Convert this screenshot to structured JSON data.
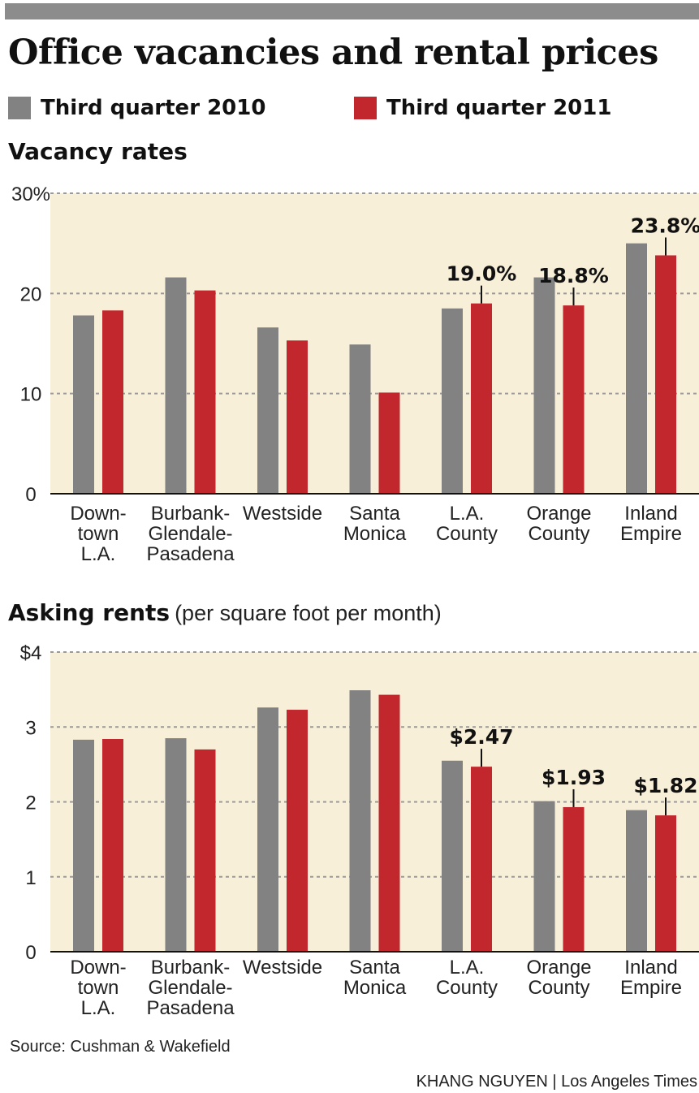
{
  "title": "Office vacancies and rental prices",
  "legend": {
    "series_2010": "Third quarter 2010",
    "series_2011": "Third quarter 2011",
    "color_2010": "#828282",
    "color_2011": "#c1272d"
  },
  "panel_background": "#f8efd9",
  "chart_data": [
    {
      "type": "bar",
      "title": "Vacancy rates",
      "note": "",
      "categories": [
        [
          "Down-",
          "town",
          "L.A."
        ],
        [
          "Burbank-",
          "Glendale-",
          "Pasadena"
        ],
        [
          "Westside"
        ],
        [
          "Santa",
          "Monica"
        ],
        [
          "L.A.",
          "County"
        ],
        [
          "Orange",
          "County"
        ],
        [
          "Inland",
          "Empire"
        ]
      ],
      "series": [
        {
          "name": "Third quarter 2010",
          "values": [
            17.8,
            21.6,
            16.6,
            14.9,
            18.5,
            21.6,
            25.0
          ]
        },
        {
          "name": "Third quarter 2011",
          "values": [
            18.3,
            20.3,
            15.3,
            10.1,
            19.0,
            18.8,
            23.8
          ]
        }
      ],
      "ylim": [
        0,
        30
      ],
      "yticks": [
        0,
        10,
        20,
        30
      ],
      "ytick_labels": [
        "0",
        "10",
        "20",
        "30%"
      ],
      "annotations": [
        {
          "category_index": 4,
          "text": "19.0%"
        },
        {
          "category_index": 5,
          "text": "18.8%"
        },
        {
          "category_index": 6,
          "text": "23.8%"
        }
      ]
    },
    {
      "type": "bar",
      "title": "Asking rents",
      "note": "(per square foot per month)",
      "categories": [
        [
          "Down-",
          "town",
          "L.A."
        ],
        [
          "Burbank-",
          "Glendale-",
          "Pasadena"
        ],
        [
          "Westside"
        ],
        [
          "Santa",
          "Monica"
        ],
        [
          "L.A.",
          "County"
        ],
        [
          "Orange",
          "County"
        ],
        [
          "Inland",
          "Empire"
        ]
      ],
      "series": [
        {
          "name": "Third quarter 2010",
          "values": [
            2.83,
            2.85,
            3.26,
            3.49,
            2.55,
            2.01,
            1.89
          ]
        },
        {
          "name": "Third quarter 2011",
          "values": [
            2.84,
            2.7,
            3.23,
            3.43,
            2.47,
            1.93,
            1.82
          ]
        }
      ],
      "ylim": [
        0,
        4
      ],
      "yticks": [
        0,
        1,
        2,
        3,
        4
      ],
      "ytick_labels": [
        "0",
        "1",
        "2",
        "3",
        "$4"
      ],
      "annotations": [
        {
          "category_index": 4,
          "text": "$2.47"
        },
        {
          "category_index": 5,
          "text": "$1.93"
        },
        {
          "category_index": 6,
          "text": "$1.82"
        }
      ]
    }
  ],
  "footer": {
    "source": "Source: Cushman & Wakefield",
    "credit": "KHANG NGUYEN | Los Angeles Times"
  }
}
